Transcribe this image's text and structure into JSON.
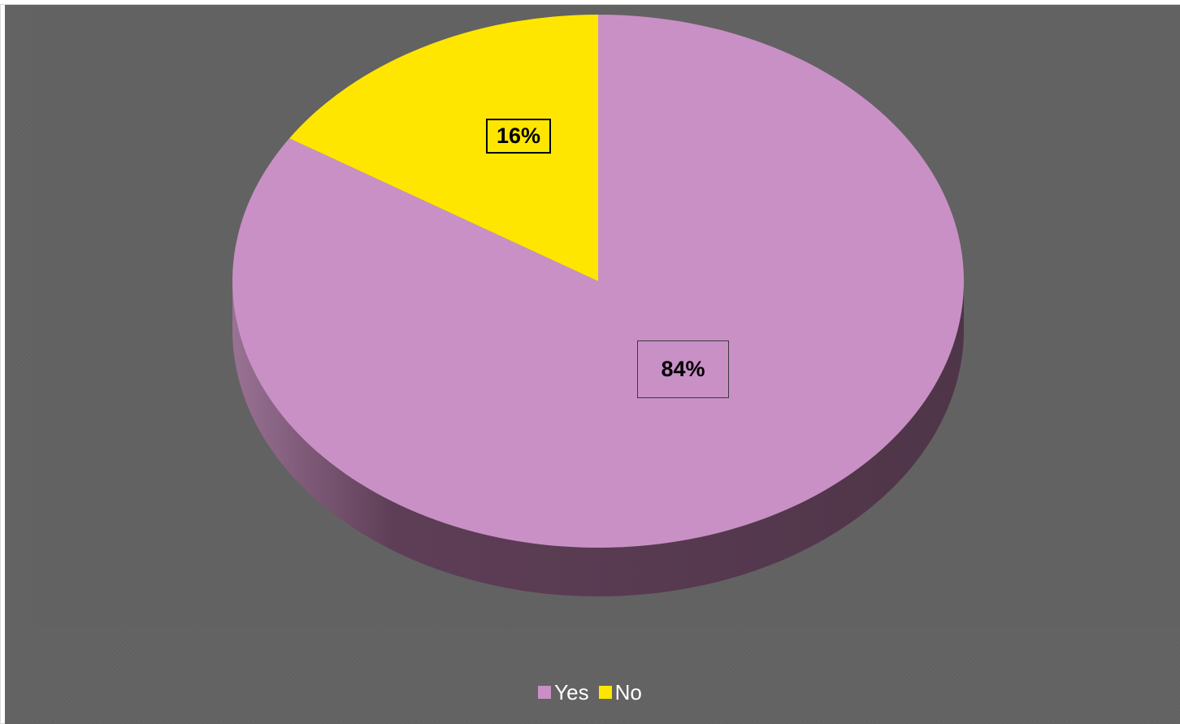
{
  "chart_data": {
    "type": "pie",
    "style": "3d",
    "categories": [
      "Yes",
      "No"
    ],
    "values": [
      84,
      16
    ],
    "labels": [
      "84%",
      "16%"
    ],
    "colors": [
      "#c990c6",
      "#ffe600"
    ],
    "side_color": "#5e3e57",
    "background": "#626262",
    "legend": "bottom-center",
    "title": ""
  }
}
